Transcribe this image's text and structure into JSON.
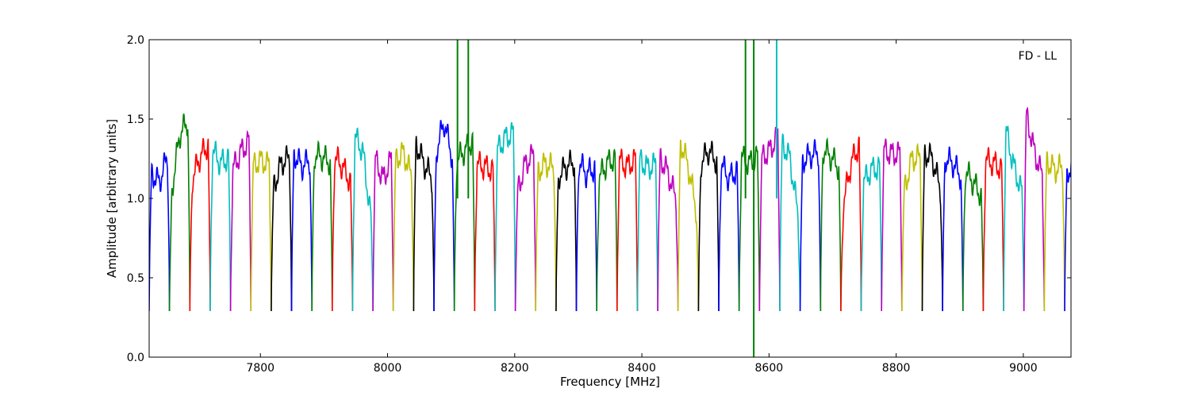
{
  "chart_data": {
    "type": "line",
    "title": "",
    "annotation": "FD - LL",
    "xlabel": "Frequency [MHz]",
    "ylabel": "Amplitude [arbitrary units]",
    "xlim": [
      7625,
      9075
    ],
    "ylim": [
      0.0,
      2.0
    ],
    "x_ticks": [
      7800,
      8000,
      8200,
      8400,
      8600,
      8800,
      9000
    ],
    "y_ticks": [
      0.0,
      0.5,
      1.0,
      1.5,
      2.0
    ],
    "x_tick_labels": [
      "7800",
      "8000",
      "8200",
      "8400",
      "8600",
      "8800",
      "9000"
    ],
    "y_tick_labels": [
      "0.0",
      "0.5",
      "1.0",
      "1.5",
      "2.0"
    ],
    "grid": false,
    "legend": "none",
    "colors": [
      "#0000ff",
      "#008000",
      "#ff0000",
      "#00bfbf",
      "#bf00bf",
      "#bfbf00",
      "#000000"
    ],
    "channel_width_mhz": 32,
    "channels": [
      {
        "start": 7625,
        "color": "#0000ff",
        "peaks": [
          1.18,
          1.1,
          1.31
        ]
      },
      {
        "start": 7657,
        "color": "#008000",
        "peaks": [
          0.95,
          1.4,
          1.51
        ]
      },
      {
        "start": 7689,
        "color": "#ff0000",
        "peaks": [
          1.08,
          1.26,
          1.36
        ]
      },
      {
        "start": 7721,
        "color": "#00bfbf",
        "peaks": [
          1.33,
          1.22,
          1.27
        ]
      },
      {
        "start": 7753,
        "color": "#bf00bf",
        "peaks": [
          1.15,
          1.29,
          1.38
        ]
      },
      {
        "start": 7785,
        "color": "#bfbf00",
        "peaks": [
          1.2,
          1.24,
          1.2
        ]
      },
      {
        "start": 7817,
        "color": "#000000",
        "peaks": [
          1.03,
          1.22,
          1.27
        ]
      },
      {
        "start": 7849,
        "color": "#0000ff",
        "peaks": [
          1.31,
          1.2,
          1.25
        ]
      },
      {
        "start": 7881,
        "color": "#008000",
        "peaks": [
          1.28,
          1.26,
          1.22
        ]
      },
      {
        "start": 7913,
        "color": "#ff0000",
        "peaks": [
          1.28,
          1.2,
          1.08
        ]
      },
      {
        "start": 7945,
        "color": "#00bfbf",
        "peaks": [
          1.41,
          1.3,
          0.78
        ]
      },
      {
        "start": 7977,
        "color": "#bf00bf",
        "peaks": [
          1.29,
          1.12,
          1.28
        ]
      },
      {
        "start": 8009,
        "color": "#bfbf00",
        "peaks": [
          1.23,
          1.29,
          1.1
        ]
      },
      {
        "start": 8041,
        "color": "#000000",
        "peaks": [
          1.39,
          1.22,
          1.1
        ]
      },
      {
        "start": 8073,
        "color": "#0000ff",
        "peaks": [
          1.25,
          1.48,
          1.2
        ]
      },
      {
        "start": 8105,
        "color": "#008000",
        "peaks": [
          1.22,
          1.3,
          1.38
        ],
        "rfi": [
          {
            "x": 8110,
            "y": 2.05
          },
          {
            "x": 8127,
            "y": 2.05
          }
        ]
      },
      {
        "start": 8137,
        "color": "#ff0000",
        "peaks": [
          1.22,
          1.2,
          1.17
        ]
      },
      {
        "start": 8169,
        "color": "#00bfbf",
        "peaks": [
          1.28,
          1.38,
          1.42
        ]
      },
      {
        "start": 8201,
        "color": "#bf00bf",
        "peaks": [
          1.0,
          1.22,
          1.29
        ]
      },
      {
        "start": 8233,
        "color": "#bfbf00",
        "peaks": [
          1.16,
          1.22,
          1.18
        ]
      },
      {
        "start": 8265,
        "color": "#000000",
        "peaks": [
          1.12,
          1.2,
          1.24
        ]
      },
      {
        "start": 8297,
        "color": "#0000ff",
        "peaks": [
          1.26,
          1.15,
          1.21
        ]
      },
      {
        "start": 8329,
        "color": "#008000",
        "peaks": [
          1.1,
          1.22,
          1.26
        ]
      },
      {
        "start": 8361,
        "color": "#ff0000",
        "peaks": [
          1.25,
          1.2,
          1.26
        ]
      },
      {
        "start": 8393,
        "color": "#00bfbf",
        "peaks": [
          1.26,
          1.19,
          1.22
        ]
      },
      {
        "start": 8425,
        "color": "#bf00bf",
        "peaks": [
          1.29,
          1.16,
          0.95
        ]
      },
      {
        "start": 8457,
        "color": "#bfbf00",
        "peaks": [
          1.41,
          1.2,
          0.85
        ]
      },
      {
        "start": 8489,
        "color": "#000000",
        "peaks": [
          1.2,
          1.3,
          1.22
        ]
      },
      {
        "start": 8521,
        "color": "#0000ff",
        "peaks": [
          1.25,
          1.12,
          1.2
        ]
      },
      {
        "start": 8553,
        "color": "#008000",
        "peaks": [
          1.27,
          1.22,
          1.28
        ],
        "rfi": [
          {
            "x": 8563,
            "y": 2.05
          },
          {
            "x": 8576,
            "y": 2.05
          },
          {
            "x": 8576,
            "y": -0.05
          }
        ]
      },
      {
        "start": 8585,
        "color": "#bf00bf",
        "peaks": [
          1.24,
          1.3,
          1.42
        ]
      },
      {
        "start": 8617,
        "color": "#00bfbf",
        "peaks": [
          1.38,
          1.25,
          0.8
        ],
        "rfi": [
          {
            "x": 8612,
            "y": 2.05
          }
        ]
      },
      {
        "start": 8649,
        "color": "#0000ff",
        "peaks": [
          1.23,
          1.27,
          1.3
        ]
      },
      {
        "start": 8681,
        "color": "#008000",
        "peaks": [
          1.33,
          1.26,
          1.18
        ]
      },
      {
        "start": 8713,
        "color": "#ff0000",
        "peaks": [
          0.88,
          1.22,
          1.37
        ]
      },
      {
        "start": 8745,
        "color": "#00bfbf",
        "peaks": [
          1.08,
          1.18,
          1.2
        ]
      },
      {
        "start": 8777,
        "color": "#bf00bf",
        "peaks": [
          1.31,
          1.28,
          1.28
        ]
      },
      {
        "start": 8809,
        "color": "#bfbf00",
        "peaks": [
          1.0,
          1.25,
          1.26
        ]
      },
      {
        "start": 8841,
        "color": "#000000",
        "peaks": [
          1.3,
          1.25,
          1.0
        ]
      },
      {
        "start": 8873,
        "color": "#0000ff",
        "peaks": [
          1.27,
          1.22,
          1.12
        ]
      },
      {
        "start": 8905,
        "color": "#008000",
        "peaks": [
          1.2,
          1.1,
          1.0
        ]
      },
      {
        "start": 8937,
        "color": "#ff0000",
        "peaks": [
          1.25,
          1.22,
          1.18
        ]
      },
      {
        "start": 8969,
        "color": "#00bfbf",
        "peaks": [
          1.5,
          1.2,
          1.0
        ]
      },
      {
        "start": 9001,
        "color": "#bf00bf",
        "peaks": [
          1.6,
          1.3,
          1.1
        ]
      },
      {
        "start": 9033,
        "color": "#bfbf00",
        "peaks": [
          1.26,
          1.18,
          1.2
        ]
      },
      {
        "start": 9065,
        "color": "#0000ff",
        "peaks": [
          1.2,
          1.15,
          1.1
        ]
      }
    ]
  }
}
